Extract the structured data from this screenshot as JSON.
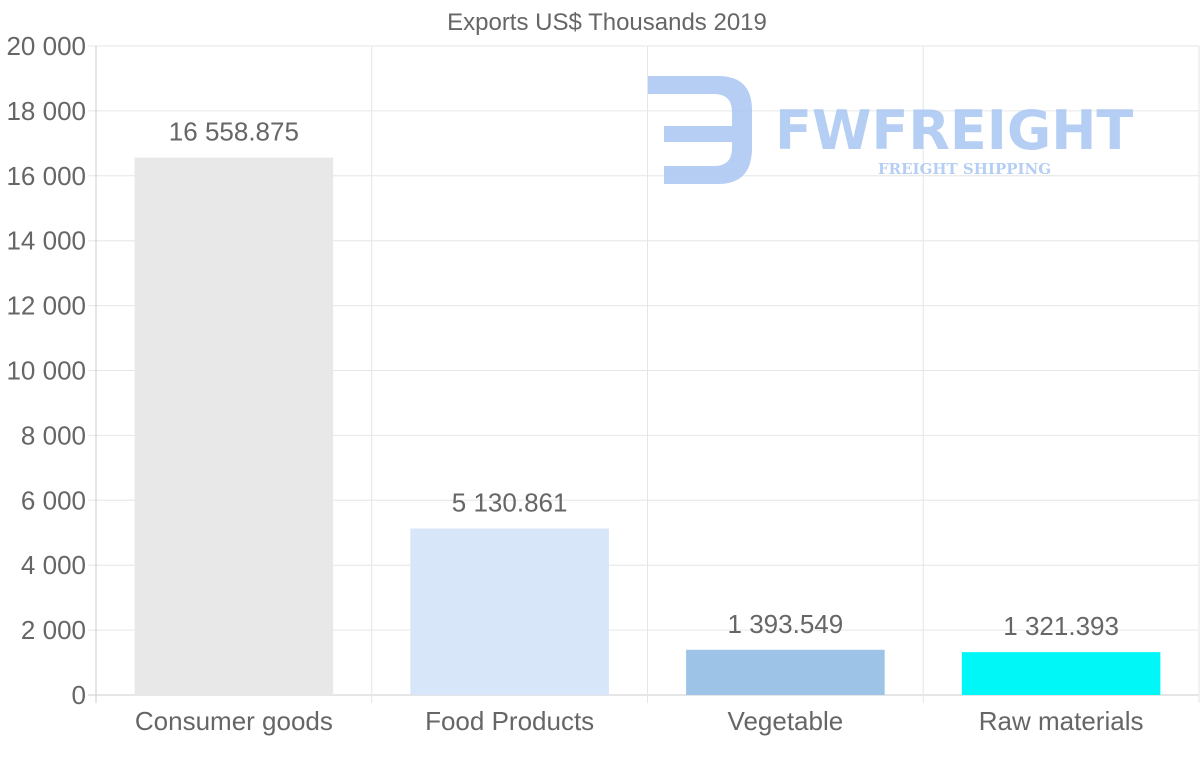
{
  "chart_data": {
    "type": "bar",
    "title": "Exports US$ Thousands 2019",
    "categories": [
      "Consumer goods",
      "Food Products",
      "Vegetable",
      "Raw materials"
    ],
    "values": [
      16558.875,
      5130.861,
      1393.549,
      1321.393
    ],
    "value_labels": [
      "16 558.875",
      "5 130.861",
      "1 393.549",
      "1 321.393"
    ],
    "colors": [
      "#e8e8e8",
      "#d7e6f8",
      "#9dc3e6",
      "#00f7f7"
    ],
    "ylim": [
      0,
      20000
    ],
    "yticks": [
      0,
      2000,
      4000,
      6000,
      8000,
      10000,
      12000,
      14000,
      16000,
      18000,
      20000
    ],
    "ytick_labels": [
      "0",
      "2 000",
      "4 000",
      "6 000",
      "8 000",
      "10 000",
      "12 000",
      "14 000",
      "16 000",
      "18 000",
      "20 000"
    ],
    "grid": true,
    "xlabel": "",
    "ylabel": ""
  },
  "watermark": {
    "brand": "FWFREIGHT",
    "tagline": "FREIGHT SHIPPING",
    "color": "#a9c6f2"
  }
}
